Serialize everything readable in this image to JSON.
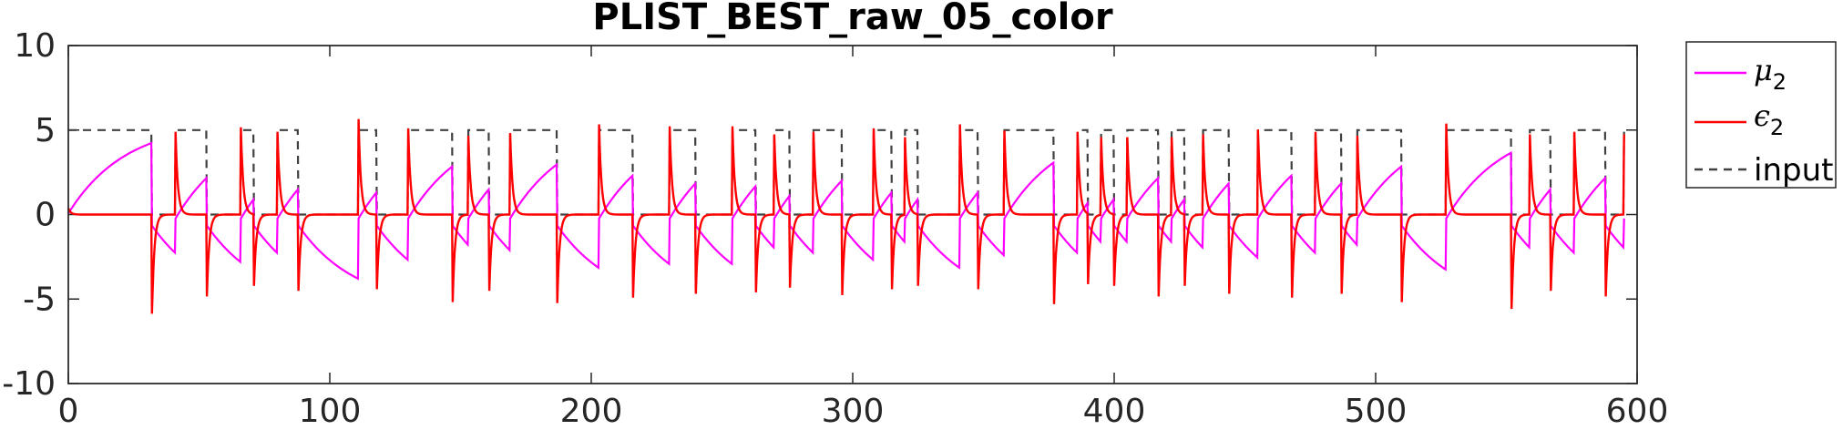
{
  "chart_data": {
    "type": "line",
    "title": "PLIST_BEST_raw_05_color",
    "xlabel": "",
    "ylabel": "",
    "xlim": [
      0,
      600
    ],
    "ylim": [
      -10,
      10
    ],
    "xticks": [
      0,
      100,
      200,
      300,
      400,
      500,
      600
    ],
    "yticks": [
      -10,
      -5,
      0,
      5,
      10
    ],
    "grid": false,
    "legend_position": "outside-top-right",
    "input_switch_times": [
      0,
      32,
      41,
      53,
      66,
      71,
      80,
      88,
      111,
      118,
      130,
      147,
      153,
      161,
      169,
      187,
      203,
      216,
      230,
      240,
      254,
      263,
      270,
      276,
      285,
      296,
      308,
      315,
      320,
      325,
      341,
      348,
      358,
      377,
      386,
      390,
      395,
      400,
      405,
      417,
      422,
      427,
      434,
      444,
      455,
      468,
      477,
      487,
      493,
      510,
      527,
      552,
      559,
      567,
      576,
      588,
      595
    ],
    "input_high": 5,
    "input_low": 0,
    "series": [
      {
        "name": "μ2",
        "label_main": "μ",
        "label_sub": "2",
        "color": "#FF00FF",
        "dash": "solid",
        "role": "mu",
        "values_note": ""
      },
      {
        "name": "ϵ2",
        "label_main": "ϵ",
        "label_sub": "2",
        "color": "#FF0000",
        "dash": "solid",
        "role": "epsilon"
      },
      {
        "name": "input",
        "label_main": "input",
        "label_sub": "",
        "color": "#404040",
        "dash": "dashed",
        "role": "input"
      }
    ]
  }
}
